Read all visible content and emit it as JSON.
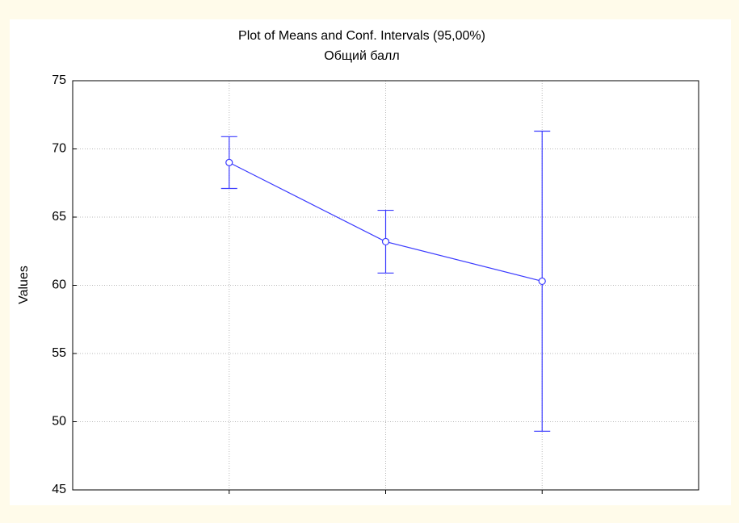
{
  "chart_data": {
    "type": "line",
    "title": "Plot of Means and Conf. Intervals (95,00%)",
    "subtitle": "Общий балл",
    "ylabel": "Values",
    "categories": [
      null,
      null,
      null
    ],
    "series": [
      {
        "color": "#3a3aff",
        "values": [
          69.0,
          63.2,
          60.3
        ],
        "errors": [
          1.9,
          2.3,
          11.0
        ]
      }
    ],
    "ylim": [
      45,
      75
    ],
    "yticks": [
      45,
      50,
      55,
      60,
      65,
      70,
      75
    ],
    "grid": true
  }
}
